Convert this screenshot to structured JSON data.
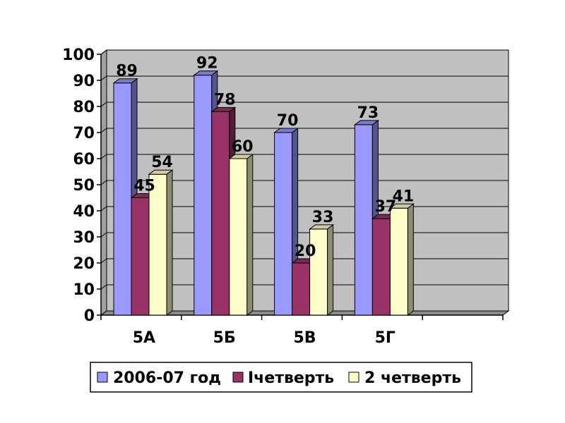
{
  "chart_data": {
    "type": "bar",
    "categories": [
      "5А",
      "5Б",
      "5В",
      "5Г"
    ],
    "series": [
      {
        "name": "2006-07 год",
        "values": [
          89,
          92,
          70,
          73
        ],
        "color": "#9999FF"
      },
      {
        "name": "Ічетверть",
        "values": [
          45,
          78,
          20,
          37
        ],
        "color": "#993366"
      },
      {
        "name": "2 четверть",
        "values": [
          54,
          60,
          33,
          41
        ],
        "color": "#FFFFCC"
      }
    ],
    "ylim": [
      0,
      100
    ],
    "yticks": [
      "0",
      "10",
      "20",
      "30",
      "40",
      "50",
      "60",
      "70",
      "80",
      "90",
      "100"
    ],
    "grid": true,
    "legend_position": "bottom",
    "wall_color": "#C0C0C0"
  }
}
